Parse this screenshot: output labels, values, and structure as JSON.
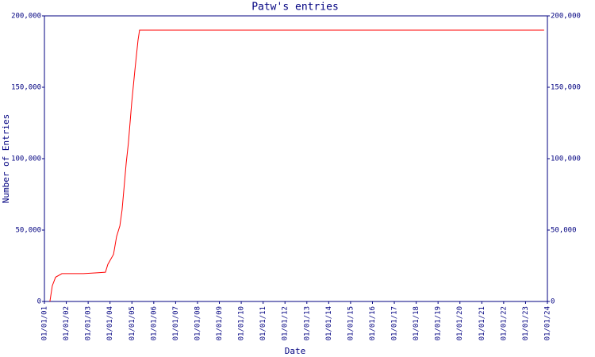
{
  "chart_data": {
    "type": "line",
    "title": "Patw's entries",
    "x_label": "Date",
    "y_label": "Number of Entries",
    "xlim": [
      0,
      23
    ],
    "xticks": [
      {
        "value": 0,
        "label": "01/01/01"
      },
      {
        "value": 1,
        "label": "01/01/02"
      },
      {
        "value": 2,
        "label": "01/01/03"
      },
      {
        "value": 3,
        "label": "01/01/04"
      },
      {
        "value": 4,
        "label": "01/01/05"
      },
      {
        "value": 5,
        "label": "01/01/06"
      },
      {
        "value": 6,
        "label": "01/01/07"
      },
      {
        "value": 7,
        "label": "01/01/08"
      },
      {
        "value": 8,
        "label": "01/01/09"
      },
      {
        "value": 9,
        "label": "01/01/10"
      },
      {
        "value": 10,
        "label": "01/01/11"
      },
      {
        "value": 11,
        "label": "01/01/12"
      },
      {
        "value": 12,
        "label": "01/01/13"
      },
      {
        "value": 13,
        "label": "01/01/14"
      },
      {
        "value": 14,
        "label": "01/01/15"
      },
      {
        "value": 15,
        "label": "01/01/16"
      },
      {
        "value": 16,
        "label": "01/01/17"
      },
      {
        "value": 17,
        "label": "01/01/18"
      },
      {
        "value": 18,
        "label": "01/01/19"
      },
      {
        "value": 19,
        "label": "01/01/20"
      },
      {
        "value": 20,
        "label": "01/01/21"
      },
      {
        "value": 21,
        "label": "01/01/22"
      },
      {
        "value": 22,
        "label": "01/01/23"
      },
      {
        "value": 23,
        "label": "01/01/24"
      }
    ],
    "ylim": [
      0,
      200000
    ],
    "yticks": [
      0,
      {
        "value": 50000,
        "label": "50,000"
      },
      {
        "value": 100000,
        "label": "100,000"
      },
      {
        "value": 150000,
        "label": "150,000"
      },
      {
        "value": 200000,
        "label": "200,000"
      }
    ],
    "x": [
      0.25,
      0.36,
      0.51,
      0.8,
      1.78,
      2.32,
      2.79,
      2.9,
      3.16,
      3.3,
      3.45,
      3.55,
      3.66,
      3.74,
      3.84,
      3.99,
      4.13,
      4.28,
      4.35,
      22.85
    ],
    "series": [
      {
        "color": "#ff0000",
        "values": [
          0,
          11000,
          17000,
          19500,
          19500,
          20000,
          20500,
          26000,
          33000,
          45500,
          53000,
          64000,
          83000,
          97000,
          111000,
          139000,
          161000,
          183000,
          190000,
          190000
        ]
      }
    ]
  }
}
